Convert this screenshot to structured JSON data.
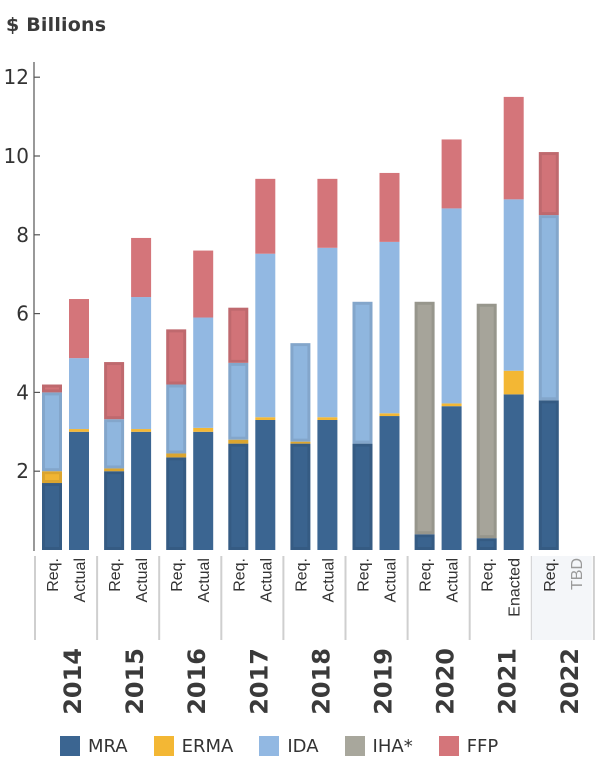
{
  "chart_data": {
    "type": "bar",
    "stacked": true,
    "ylabel": "$ Billions",
    "ylim": [
      0,
      12
    ],
    "yticks": [
      2,
      4,
      6,
      8,
      10,
      12
    ],
    "grid": false,
    "legend_position": "bottom",
    "years": [
      "2014",
      "2015",
      "2016",
      "2017",
      "2018",
      "2019",
      "2020",
      "2021",
      "2022"
    ],
    "categories": [
      {
        "year": "2014",
        "label": "Req."
      },
      {
        "year": "2014",
        "label": "Actual"
      },
      {
        "year": "2015",
        "label": "Req."
      },
      {
        "year": "2015",
        "label": "Actual"
      },
      {
        "year": "2016",
        "label": "Req."
      },
      {
        "year": "2016",
        "label": "Actual"
      },
      {
        "year": "2017",
        "label": "Req."
      },
      {
        "year": "2017",
        "label": "Actual"
      },
      {
        "year": "2018",
        "label": "Req."
      },
      {
        "year": "2018",
        "label": "Actual"
      },
      {
        "year": "2019",
        "label": "Req."
      },
      {
        "year": "2019",
        "label": "Actual"
      },
      {
        "year": "2020",
        "label": "Req."
      },
      {
        "year": "2020",
        "label": "Actual"
      },
      {
        "year": "2021",
        "label": "Req."
      },
      {
        "year": "2021",
        "label": "Enacted"
      },
      {
        "year": "2022",
        "label": "Req."
      },
      {
        "year": "2022",
        "label": "TBD",
        "placeholder": true
      }
    ],
    "series": [
      {
        "name": "MRA",
        "color": "#3b6591",
        "values": [
          1.7,
          3.0,
          2.0,
          3.0,
          2.35,
          3.0,
          2.7,
          3.3,
          2.7,
          3.3,
          2.7,
          3.4,
          0.4,
          3.65,
          0.3,
          3.95,
          3.8,
          null
        ]
      },
      {
        "name": "ERMA",
        "color": "#f3b734",
        "values": [
          0.3,
          0.07,
          0.07,
          0.07,
          0.1,
          0.1,
          0.1,
          0.07,
          0.05,
          0.07,
          0.0,
          0.07,
          0.0,
          0.07,
          0.0,
          0.6,
          0.0,
          null
        ]
      },
      {
        "name": "IDA",
        "color": "#92b8e2",
        "values": [
          2.0,
          1.8,
          1.25,
          3.35,
          1.75,
          2.8,
          1.95,
          4.15,
          2.5,
          4.3,
          3.6,
          4.35,
          0.0,
          4.95,
          0.0,
          4.35,
          4.7,
          null
        ]
      },
      {
        "name": "IHA*",
        "color": "#a8a79c",
        "values": [
          0.0,
          0.0,
          0.0,
          0.0,
          0.0,
          0.0,
          0.0,
          0.0,
          0.0,
          0.0,
          0.0,
          0.0,
          5.9,
          0.0,
          5.95,
          0.0,
          0.0,
          null
        ]
      },
      {
        "name": "FFP",
        "color": "#d4757a",
        "values": [
          0.2,
          1.5,
          1.45,
          1.5,
          1.4,
          1.7,
          1.4,
          1.9,
          0.0,
          1.75,
          0.0,
          1.75,
          0.0,
          1.75,
          0.0,
          2.6,
          1.6,
          null
        ]
      }
    ]
  }
}
